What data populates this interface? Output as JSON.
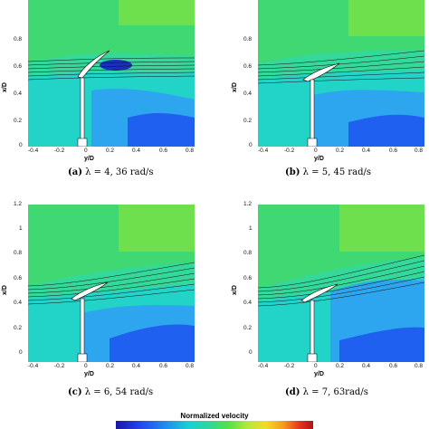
{
  "panels": [
    {
      "caption_letter": "(a)",
      "caption_text": "λ = 4, 36 rad/s"
    },
    {
      "caption_letter": "(b)",
      "caption_text": "λ = 5, 45 rad/s"
    },
    {
      "caption_letter": "(c)",
      "caption_text": "λ = 6, 54 rad/s"
    },
    {
      "caption_letter": "(d)",
      "caption_text": "λ = 7, 63rad/s"
    }
  ],
  "axes": {
    "xlabel": "y/D",
    "ylabel": "x/D",
    "yticks_top": [
      "0.8",
      "0.6",
      "0.4",
      "0.2",
      "0"
    ],
    "yticks_bottom": [
      "1.2",
      "1",
      "0.8",
      "0.6",
      "0.4",
      "0.2",
      "0"
    ],
    "xticks": [
      "-0.4",
      "-0.2",
      "0",
      "0.2",
      "0.4",
      "0.6",
      "0.8"
    ]
  },
  "colorbar": {
    "title": "Normalized velocity"
  },
  "colors": {
    "background_green": "#3fd873",
    "cyan": "#22d3c8",
    "light_blue": "#2ea6ef",
    "blue": "#2060f0",
    "dark_blue": "#1b2fb8"
  }
}
